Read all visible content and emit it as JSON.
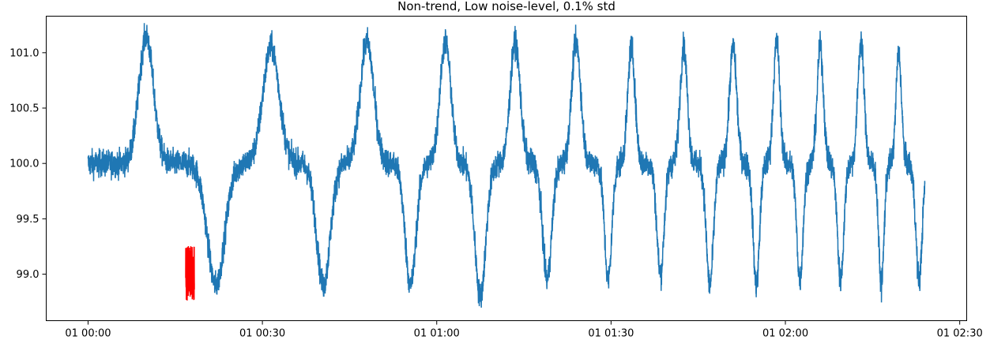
{
  "chart_data": {
    "type": "line",
    "title": "Non-trend, Low noise-level, 0.1% std",
    "xlabel": "",
    "ylabel": "",
    "x_unit": "minutes",
    "xlim_minutes": [
      -7.2,
      151.2
    ],
    "ylim": [
      98.58,
      101.33
    ],
    "grid": false,
    "legend": null,
    "x_ticks": [
      {
        "minutes": 0,
        "label": "01 00:00"
      },
      {
        "minutes": 30,
        "label": "01 00:30"
      },
      {
        "minutes": 60,
        "label": "01 01:00"
      },
      {
        "minutes": 90,
        "label": "01 01:30"
      },
      {
        "minutes": 120,
        "label": "01 02:00"
      },
      {
        "minutes": 150,
        "label": "01 02:30"
      }
    ],
    "y_ticks": [
      {
        "value": 99.0,
        "label": "99.0"
      },
      {
        "value": 99.5,
        "label": "99.5"
      },
      {
        "value": 100.0,
        "label": "100.0"
      },
      {
        "value": 100.5,
        "label": "100.5"
      },
      {
        "value": 101.0,
        "label": "101.0"
      }
    ],
    "series": [
      {
        "color": "#1f77b4",
        "baseline": 100.0,
        "noise_amplitude": 0.15,
        "x_range_minutes": [
          0,
          144
        ],
        "events": [
          {
            "x": 10.0,
            "y": 101.15
          },
          {
            "x": 22.0,
            "y": 98.9
          },
          {
            "x": 31.5,
            "y": 101.05
          },
          {
            "x": 40.5,
            "y": 98.9
          },
          {
            "x": 48.0,
            "y": 101.1
          },
          {
            "x": 55.5,
            "y": 98.9
          },
          {
            "x": 61.5,
            "y": 101.1
          },
          {
            "x": 67.5,
            "y": 98.8
          },
          {
            "x": 73.5,
            "y": 101.1
          },
          {
            "x": 79.0,
            "y": 98.95
          },
          {
            "x": 84.0,
            "y": 101.1
          },
          {
            "x": 89.5,
            "y": 98.95
          },
          {
            "x": 93.5,
            "y": 101.05
          },
          {
            "x": 98.5,
            "y": 99.0
          },
          {
            "x": 102.5,
            "y": 101.05
          },
          {
            "x": 107.0,
            "y": 98.9
          },
          {
            "x": 111.0,
            "y": 101.05
          },
          {
            "x": 115.0,
            "y": 98.9
          },
          {
            "x": 118.5,
            "y": 101.1
          },
          {
            "x": 122.5,
            "y": 98.95
          },
          {
            "x": 126.0,
            "y": 101.05
          },
          {
            "x": 129.5,
            "y": 98.95
          },
          {
            "x": 133.0,
            "y": 101.1
          },
          {
            "x": 136.5,
            "y": 98.9
          },
          {
            "x": 139.5,
            "y": 101.0
          },
          {
            "x": 143.0,
            "y": 98.95
          }
        ]
      },
      {
        "color": "#ff0000",
        "x_range_minutes": [
          16.8,
          18.3
        ],
        "y_range": [
          98.76,
          99.26
        ]
      }
    ]
  }
}
